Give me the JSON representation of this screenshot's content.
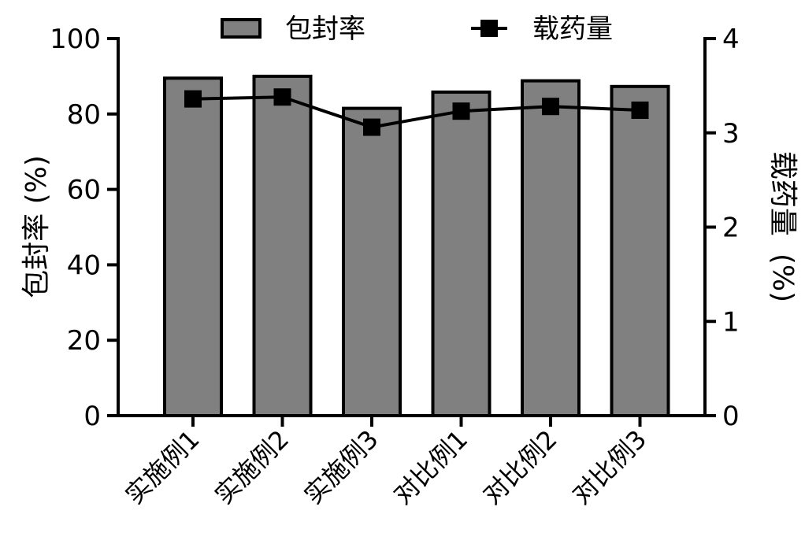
{
  "chart_data": {
    "type": "bar",
    "categories": [
      "实施例1",
      "实施例2",
      "实施例3",
      "对比例1",
      "对比例2",
      "对比例3"
    ],
    "series": [
      {
        "name": "包封率",
        "type": "bar",
        "axis": "left",
        "color": "#808080",
        "values": [
          89.5,
          90.0,
          81.5,
          85.8,
          88.8,
          87.3
        ]
      },
      {
        "name": "载药量",
        "type": "line",
        "axis": "right",
        "color": "#000000",
        "marker": "square",
        "values": [
          3.36,
          3.38,
          3.06,
          3.23,
          3.28,
          3.24
        ]
      }
    ],
    "ylabel_left": "包封率 (%)",
    "ylabel_right": "载药量 (%)",
    "ylabel_right_main": "载药量",
    "ylabel_right_unit": "(%)",
    "ylim_left": [
      0,
      100
    ],
    "yticks_left": [
      "0",
      "20",
      "40",
      "60",
      "80",
      "100"
    ],
    "ylim_right": [
      0,
      4
    ],
    "yticks_right": [
      "0",
      "1",
      "2",
      "3",
      "4"
    ],
    "legend_position": "top",
    "grid": false
  }
}
